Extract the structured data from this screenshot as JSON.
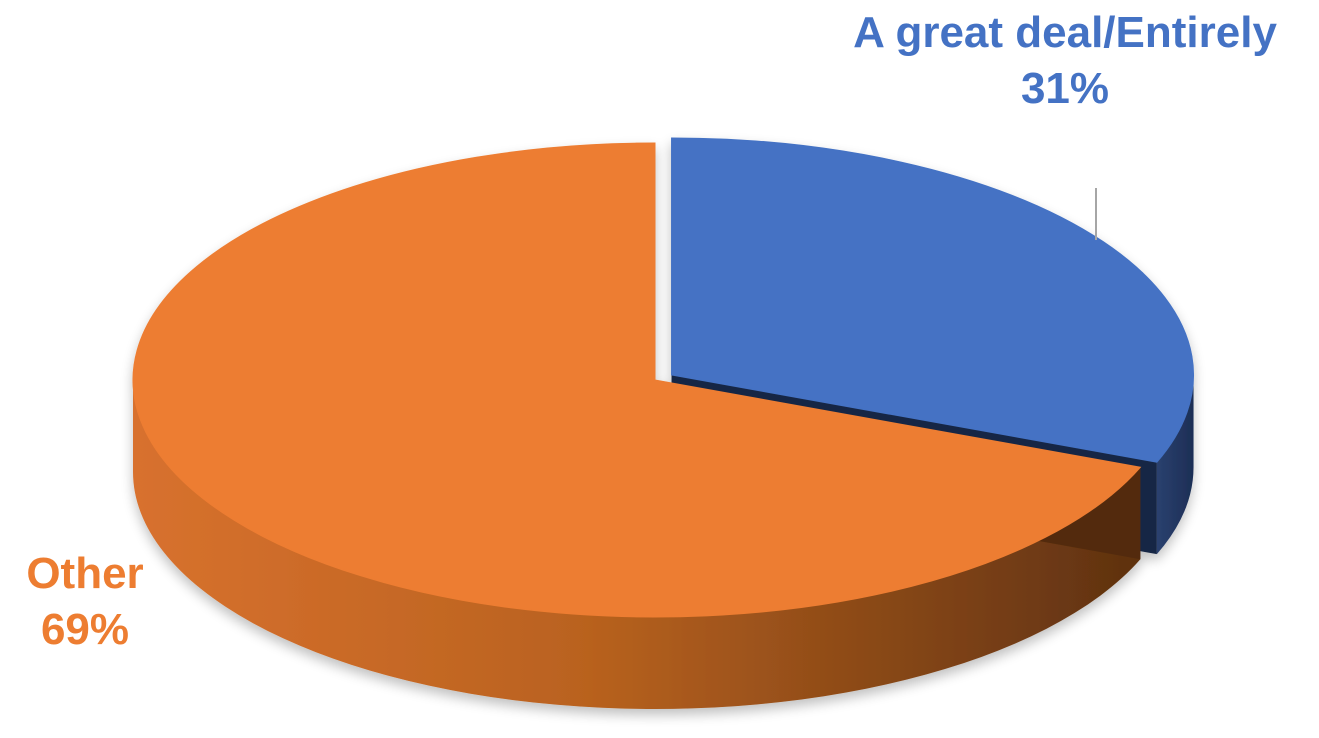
{
  "chart_data": {
    "type": "pie",
    "title": "",
    "slices": [
      {
        "label": "A great deal/Entirely",
        "value": 31,
        "value_label": "31%",
        "color": "#4472C4"
      },
      {
        "label": "Other",
        "value": 69,
        "value_label": "69%",
        "color": "#ED7D31"
      }
    ],
    "style": "3d",
    "legend": "none"
  }
}
